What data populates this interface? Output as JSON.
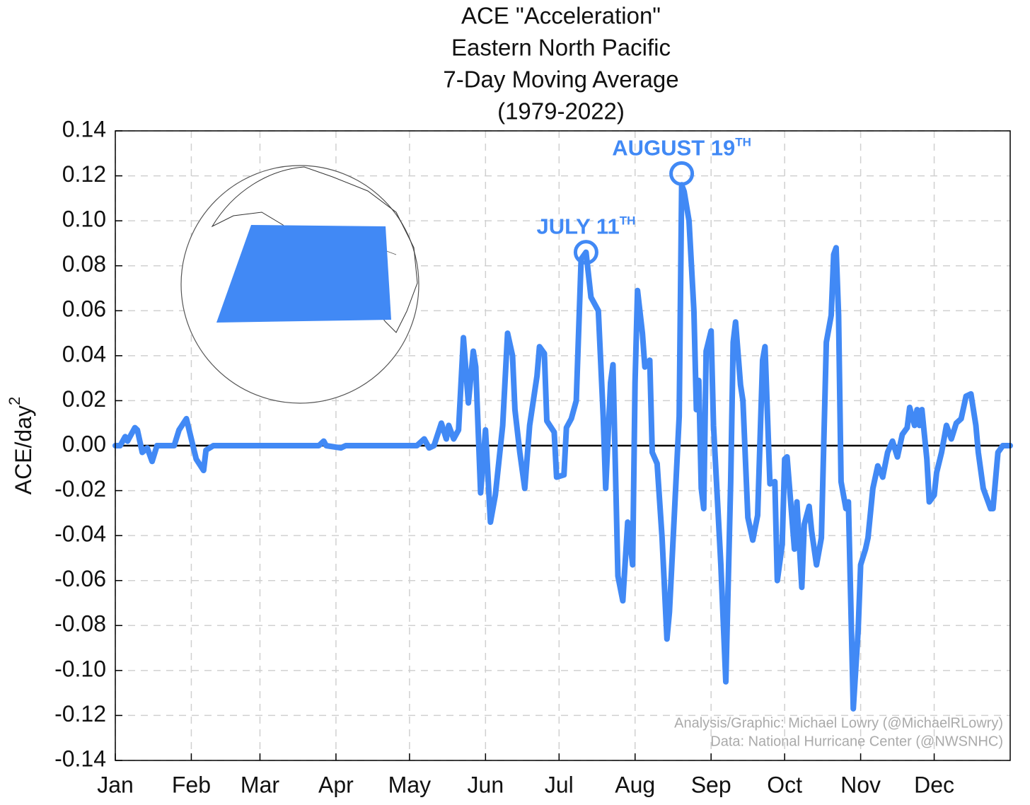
{
  "chart_data": {
    "type": "line",
    "title_lines": [
      "ACE \"Acceleration\"",
      "Eastern North Pacific",
      "7-Day Moving Average",
      "(1979-2022)"
    ],
    "ylabel": "ACE/day",
    "ylabel_superscript": "2",
    "xlim": [
      1,
      366
    ],
    "xticks": [
      {
        "value": 1,
        "label": "Jan"
      },
      {
        "value": 32,
        "label": "Feb"
      },
      {
        "value": 60,
        "label": "Mar"
      },
      {
        "value": 91,
        "label": "Apr"
      },
      {
        "value": 121,
        "label": "May"
      },
      {
        "value": 152,
        "label": "Jun"
      },
      {
        "value": 182,
        "label": "Jul"
      },
      {
        "value": 213,
        "label": "Aug"
      },
      {
        "value": 244,
        "label": "Sep"
      },
      {
        "value": 274,
        "label": "Oct"
      },
      {
        "value": 305,
        "label": "Nov"
      },
      {
        "value": 335,
        "label": "Dec"
      }
    ],
    "ylim": [
      -0.14,
      0.14
    ],
    "yticks": [
      0.14,
      0.12,
      {
        "value": 0.1,
        "label": "0.10"
      },
      0.08,
      0.06,
      0.04,
      0.02,
      {
        "value": 0,
        "label": "0.00"
      },
      -0.02,
      -0.04,
      -0.06,
      -0.08,
      {
        "value": -0.1,
        "label": "-0.10"
      },
      -0.12,
      -0.14
    ],
    "grid": true,
    "x": [
      1,
      3,
      5,
      6,
      9,
      10,
      12,
      14,
      16,
      18,
      25,
      27,
      30,
      32,
      34,
      37,
      38,
      41,
      84,
      86,
      87,
      93,
      95,
      124,
      127,
      129,
      131,
      134,
      136,
      137,
      139,
      141,
      143,
      145,
      147,
      148,
      150,
      152,
      154,
      156,
      159,
      161,
      163,
      164,
      166,
      168,
      170,
      173,
      174,
      176,
      177,
      180,
      181,
      184,
      185,
      187,
      189,
      191,
      193,
      195,
      198,
      200,
      201,
      203,
      204,
      206,
      208,
      210,
      212,
      213,
      214,
      216,
      217,
      219,
      220,
      222,
      224,
      226,
      227,
      229,
      231,
      232,
      233,
      235,
      237,
      238,
      239,
      240,
      241,
      242,
      244,
      245,
      248,
      250,
      252,
      253,
      254,
      256,
      257,
      259,
      261,
      263,
      265,
      266,
      268,
      270,
      271,
      273,
      274,
      275,
      278,
      279,
      281,
      282,
      284,
      285,
      287,
      289,
      291,
      293,
      294,
      295,
      296,
      297,
      299,
      300,
      302,
      304,
      305,
      307,
      308,
      310,
      312,
      314,
      316,
      318,
      320,
      322,
      324,
      325,
      327,
      328,
      329,
      330,
      332,
      333,
      335,
      336,
      338,
      340,
      342,
      344,
      346,
      348,
      350,
      352,
      353,
      355,
      358,
      359,
      361,
      363,
      366
    ],
    "series": [
      {
        "name": "ACE acceleration",
        "color": "#4189f5",
        "values": [
          0,
          0,
          0.004,
          0.002,
          0.008,
          0.007,
          -0.003,
          -0.001,
          -0.007,
          0,
          0,
          0.007,
          0.012,
          0.003,
          -0.006,
          -0.011,
          -0.002,
          0,
          0,
          0.002,
          0,
          -0.001,
          0,
          0,
          0.003,
          -0.001,
          0,
          0.01,
          0.003,
          0.009,
          0.003,
          0.007,
          0.048,
          0.019,
          0.042,
          0.035,
          -0.021,
          0.007,
          -0.034,
          -0.022,
          0.009,
          0.05,
          0.04,
          0.016,
          -0.003,
          -0.019,
          0.009,
          0.031,
          0.044,
          0.041,
          0.011,
          0.006,
          -0.014,
          -0.013,
          0.008,
          0.012,
          0.02,
          0.083,
          0.086,
          0.066,
          0.06,
          0.013,
          -0.019,
          0.028,
          0.036,
          -0.058,
          -0.069,
          -0.034,
          -0.053,
          0.028,
          0.069,
          0.05,
          0.035,
          0.038,
          -0.003,
          -0.008,
          -0.041,
          -0.086,
          -0.074,
          -0.031,
          0.013,
          0.116,
          0.113,
          0.1,
          0.06,
          0.016,
          0.029,
          -0.019,
          -0.028,
          0.042,
          0.051,
          0.009,
          -0.053,
          -0.105,
          -0.016,
          0.046,
          0.055,
          0.027,
          0.02,
          -0.032,
          -0.042,
          -0.031,
          0.038,
          0.044,
          -0.017,
          -0.016,
          -0.06,
          -0.044,
          -0.006,
          -0.005,
          -0.046,
          -0.025,
          -0.063,
          -0.035,
          -0.027,
          -0.038,
          -0.053,
          -0.041,
          0.046,
          0.058,
          0.085,
          0.088,
          0.058,
          -0.016,
          -0.028,
          -0.025,
          -0.117,
          -0.082,
          -0.053,
          -0.046,
          -0.041,
          -0.019,
          -0.009,
          -0.014,
          -0.003,
          0.002,
          -0.005,
          0.005,
          0.008,
          0.017,
          0.009,
          0.016,
          0.009,
          0.016,
          -0.006,
          -0.025,
          -0.022,
          -0.012,
          -0.003,
          0.009,
          0.003,
          0.01,
          0.012,
          0.022,
          0.023,
          0.009,
          -0.003,
          -0.019,
          -0.028,
          -0.028,
          -0.003,
          0,
          0
        ]
      }
    ],
    "annotations": [
      {
        "text": "JULY 11",
        "superscript": "TH",
        "x": 193,
        "y": 0.086
      },
      {
        "text": "AUGUST 19",
        "superscript": "TH",
        "x": 232,
        "y": 0.121
      }
    ],
    "credits": [
      "Analysis/Graphic: Michael Lowry (@MichaelRLowry)",
      "Data: National Hurricane Center (@NWSNHC)"
    ]
  }
}
